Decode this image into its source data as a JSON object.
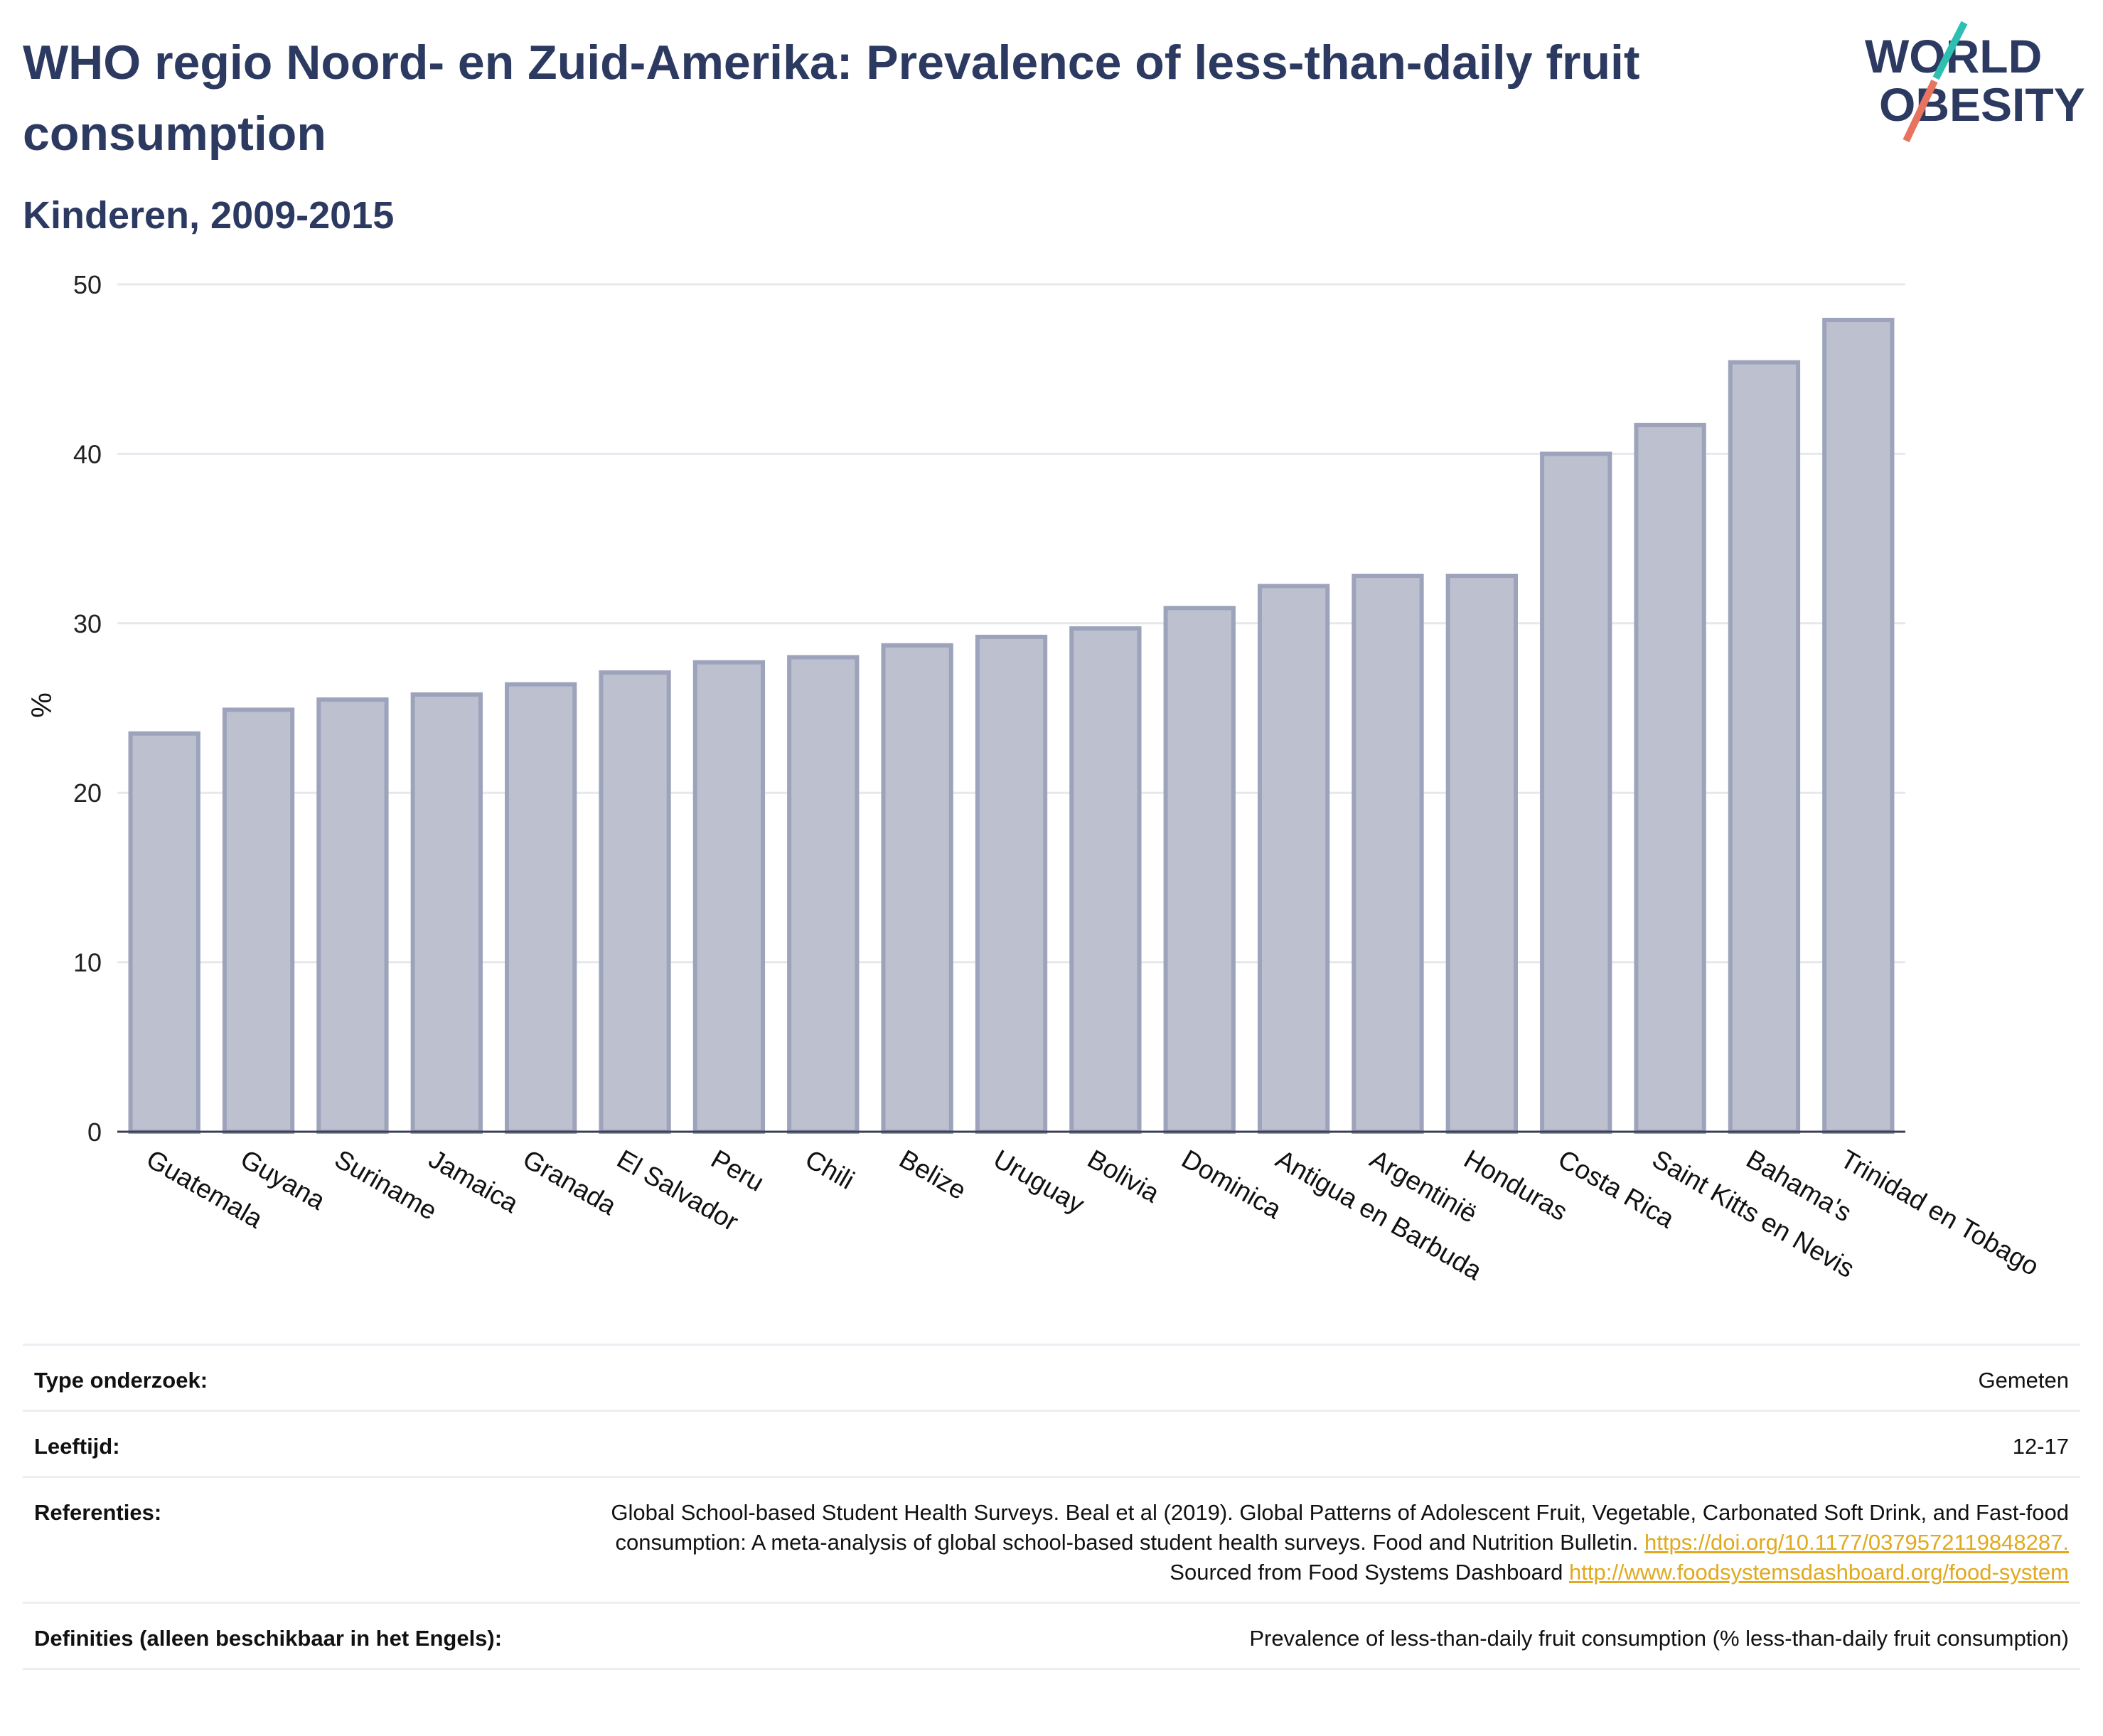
{
  "header": {
    "title": "WHO regio Noord- en Zuid-Amerika: Prevalence of less-than-daily fruit consumption",
    "subtitle": "Kinderen, 2009-2015",
    "logo_line1": "WORLD",
    "logo_line2": "OBESITY"
  },
  "colors": {
    "bar_fill": "#bcc0cf",
    "bar_stroke": "#9da3ba",
    "title": "#2c3a61",
    "link": "#e0a91e",
    "logo_teal": "#2ebfb3",
    "logo_coral": "#e8735f"
  },
  "chart_data": {
    "type": "bar",
    "ylabel": "%",
    "ylim": [
      0,
      50
    ],
    "yticks": [
      0,
      10,
      20,
      30,
      40,
      50
    ],
    "grid": true,
    "categories": [
      "Guatemala",
      "Guyana",
      "Suriname",
      "Jamaica",
      "Granada",
      "El Salvador",
      "Peru",
      "Chili",
      "Belize",
      "Uruguay",
      "Bolivia",
      "Dominica",
      "Antigua en Barbuda",
      "Argentinië",
      "Honduras",
      "Costa Rica",
      "Saint Kitts en Nevis",
      "Bahama's",
      "Trinidad en Tobago"
    ],
    "values": [
      23.5,
      24.9,
      25.5,
      25.8,
      26.4,
      27.1,
      27.7,
      28.0,
      28.7,
      29.2,
      29.7,
      30.9,
      32.2,
      32.8,
      32.8,
      40.0,
      41.7,
      45.4,
      47.9
    ]
  },
  "meta": [
    {
      "key": "Type onderzoek:",
      "value": "Gemeten"
    },
    {
      "key": "Leeftijd:",
      "value": "12-17"
    },
    {
      "key": "Referenties:",
      "value_text1": "Global School-based Student Health Surveys. Beal et al (2019). Global Patterns of Adolescent Fruit, Vegetable, Carbonated Soft Drink, and Fast-food consumption: A meta-analysis of global school-based student health surveys. Food and Nutrition Bulletin.",
      "link1": "https://doi.org/10.1177/0379572119848287.",
      "value_text2": "Sourced from Food Systems Dashboard",
      "link2": "http://www.foodsystemsdashboard.org/food-system"
    },
    {
      "key": "Definities (alleen beschikbaar in het Engels):",
      "value": "Prevalence of less-than-daily fruit consumption (% less-than-daily fruit consumption)"
    }
  ]
}
